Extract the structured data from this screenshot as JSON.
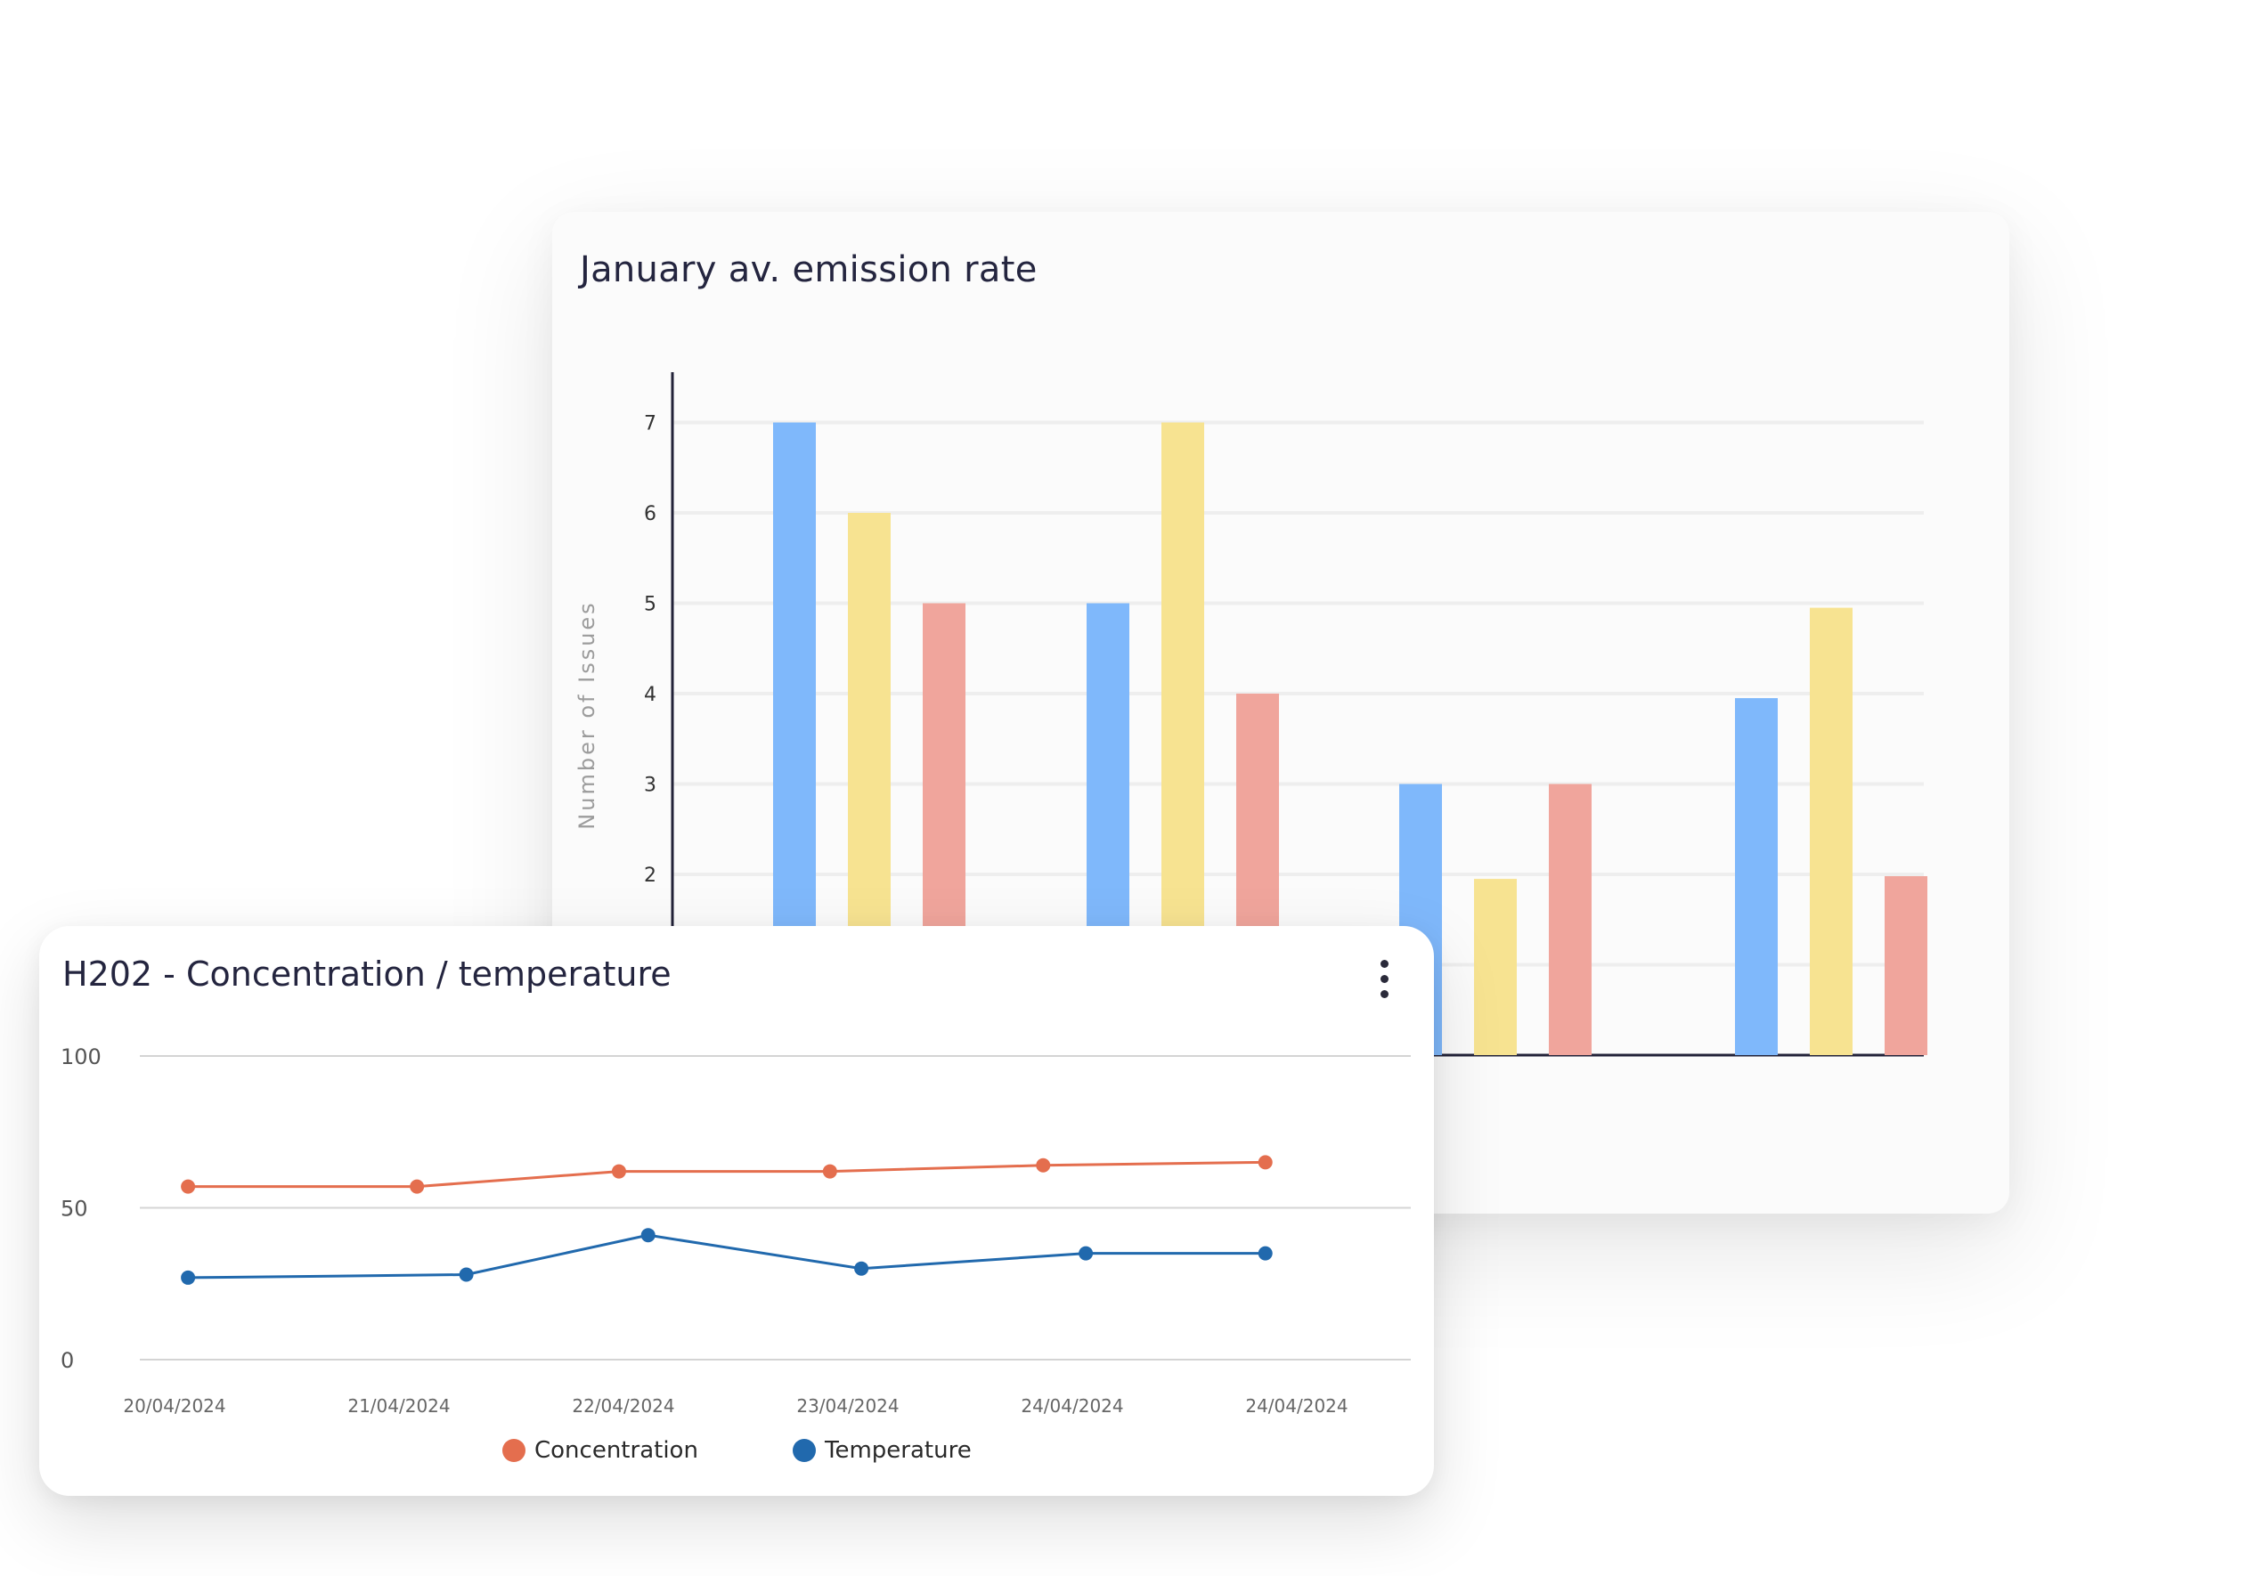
{
  "bar_card": {
    "title": "January av. emission rate",
    "colors": [
      "#7fb8fb",
      "#f7e391",
      "#f0a59c"
    ]
  },
  "line_card": {
    "title": "H202 - Concentration / temperature",
    "menu_icon": "kebab-menu-icon",
    "legend": [
      {
        "label": "Concentration",
        "color": "#e46e4e"
      },
      {
        "label": "Temperature",
        "color": "#2169ad"
      }
    ]
  },
  "chart_data": [
    {
      "type": "bar",
      "title": "January av. emission rate",
      "ylabel": "Number of Issues",
      "ylim": [
        0,
        7.6
      ],
      "yticks": [
        2,
        3,
        4,
        5,
        6,
        7
      ],
      "grid": true,
      "categories": [
        "",
        "",
        "",
        ""
      ],
      "series": [
        {
          "values": [
            7,
            5,
            3,
            3.95
          ]
        },
        {
          "values": [
            6,
            7,
            1.95,
            4.95
          ]
        },
        {
          "values": [
            5,
            4,
            3,
            1.98
          ]
        }
      ]
    },
    {
      "type": "line",
      "title": "H202 - Concentration / temperature",
      "x": [
        "20/04/2024",
        "21/04/2024",
        "22/04/2024",
        "23/04/2024",
        "24/04/2024",
        "24/04/2024"
      ],
      "ylim": [
        0,
        100
      ],
      "yticks": [
        0,
        50,
        100
      ],
      "grid": true,
      "legend_position": "bottom",
      "series": [
        {
          "name": "Concentration",
          "points": [
            [
              0,
              57
            ],
            [
              1,
              57
            ],
            [
              2,
              62
            ],
            [
              3,
              62
            ],
            [
              4,
              64
            ],
            [
              5,
              65
            ]
          ],
          "x_points": [
            0.06,
            1.08,
            1.98,
            2.92,
            3.87,
            4.86
          ]
        },
        {
          "name": "Temperature",
          "points": [
            [
              0,
              27
            ],
            [
              1,
              28
            ],
            [
              2,
              41
            ],
            [
              3,
              30
            ],
            [
              4,
              35
            ],
            [
              5,
              35
            ]
          ],
          "x_points": [
            0.06,
            1.3,
            2.11,
            3.06,
            4.06,
            4.86
          ]
        }
      ]
    }
  ]
}
